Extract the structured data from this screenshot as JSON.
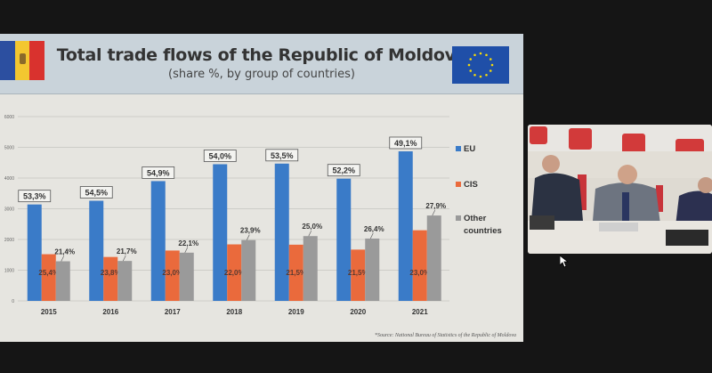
{
  "slide": {
    "title": "Total trade flows of the Republic of Moldova",
    "subtitle": "(share %, by group of countries)",
    "source": "*Source: National Bureau of Statistics of the Republic of Moldova"
  },
  "colors": {
    "EU": "#3a7bc8",
    "CIS": "#ea6a3c",
    "Other countries": "#9a9a9a"
  },
  "chart_data": {
    "type": "bar",
    "title": "Total trade flows of the Republic of Moldova",
    "subtitle": "(share %, by group of countries)",
    "categories": [
      "2015",
      "2016",
      "2017",
      "2018",
      "2019",
      "2020",
      "2021"
    ],
    "ylim": [
      0,
      6000
    ],
    "yticks": [
      "0",
      "1000",
      "2000",
      "3000",
      "4000",
      "5000",
      "6000"
    ],
    "grid": true,
    "legend": "right",
    "series": [
      {
        "name": "EU",
        "values": [
          3140,
          3260,
          3900,
          4450,
          4470,
          3980,
          4870
        ],
        "labels": [
          "53,3%",
          "54,5%",
          "54,9%",
          "54,0%",
          "53,5%",
          "52,2%",
          "49,1%"
        ]
      },
      {
        "name": "CIS",
        "values": [
          1520,
          1430,
          1640,
          1840,
          1830,
          1670,
          2300
        ],
        "labels": [
          "25,4%",
          "23,8%",
          "23,0%",
          "22,0%",
          "21,5%",
          "21,5%",
          "23,0%"
        ]
      },
      {
        "name": "Other countries",
        "values": [
          1290,
          1300,
          1570,
          1980,
          2110,
          2030,
          2780
        ],
        "labels": [
          "21,4%",
          "21,7%",
          "22,1%",
          "23,9%",
          "25,0%",
          "26,4%",
          "27,9%"
        ]
      }
    ]
  }
}
